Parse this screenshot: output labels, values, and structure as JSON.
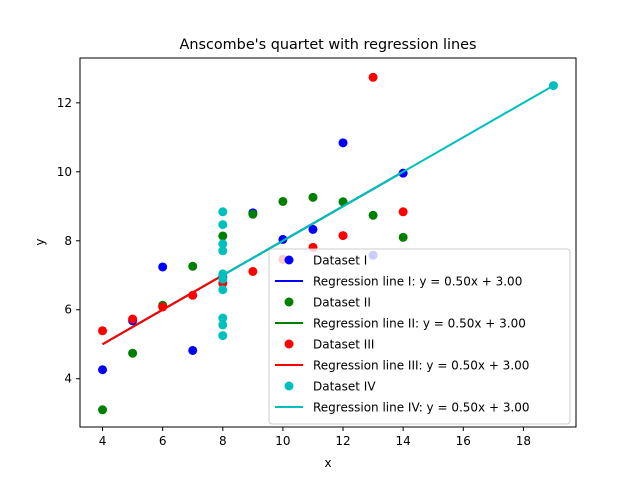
{
  "chart_data": {
    "type": "scatter",
    "title": "Anscombe's quartet with regression lines",
    "xlabel": "x",
    "ylabel": "y",
    "xlim": [
      3.25,
      19.75
    ],
    "ylim": [
      2.6,
      13.3
    ],
    "xticks": [
      4,
      6,
      8,
      10,
      12,
      14,
      16,
      18
    ],
    "yticks": [
      4,
      6,
      8,
      10,
      12
    ],
    "grid": false,
    "legend_position": "lower-right",
    "series": [
      {
        "name": "Dataset I",
        "kind": "scatter",
        "color": "#0000ff",
        "points": [
          [
            10,
            8.04
          ],
          [
            8,
            6.95
          ],
          [
            13,
            7.58
          ],
          [
            9,
            8.81
          ],
          [
            11,
            8.33
          ],
          [
            14,
            9.96
          ],
          [
            6,
            7.24
          ],
          [
            4,
            4.26
          ],
          [
            12,
            10.84
          ],
          [
            7,
            4.82
          ],
          [
            5,
            5.68
          ]
        ]
      },
      {
        "name": "Regression line I: y = 0.50x + 3.00",
        "kind": "line",
        "color": "#0000ff",
        "x": [
          4,
          14
        ],
        "y": [
          5.0,
          10.0
        ]
      },
      {
        "name": "Dataset II",
        "kind": "scatter",
        "color": "#008000",
        "points": [
          [
            10,
            9.14
          ],
          [
            8,
            8.14
          ],
          [
            13,
            8.74
          ],
          [
            9,
            8.77
          ],
          [
            11,
            9.26
          ],
          [
            14,
            8.1
          ],
          [
            6,
            6.13
          ],
          [
            4,
            3.1
          ],
          [
            12,
            9.13
          ],
          [
            7,
            7.26
          ],
          [
            5,
            4.74
          ]
        ]
      },
      {
        "name": "Regression line II: y = 0.50x + 3.00",
        "kind": "line",
        "color": "#008000",
        "x": [
          4,
          14
        ],
        "y": [
          5.0,
          10.0
        ]
      },
      {
        "name": "Dataset III",
        "kind": "scatter",
        "color": "#ff0000",
        "points": [
          [
            10,
            7.46
          ],
          [
            8,
            6.77
          ],
          [
            13,
            12.74
          ],
          [
            9,
            7.11
          ],
          [
            11,
            7.81
          ],
          [
            14,
            8.84
          ],
          [
            6,
            6.08
          ],
          [
            4,
            5.39
          ],
          [
            12,
            8.15
          ],
          [
            7,
            6.42
          ],
          [
            5,
            5.73
          ]
        ]
      },
      {
        "name": "Regression line III: y = 0.50x + 3.00",
        "kind": "line",
        "color": "#ff0000",
        "x": [
          4,
          8
        ],
        "y": [
          5.0,
          7.0
        ]
      },
      {
        "name": "Dataset IV",
        "kind": "scatter",
        "color": "#00bfbf",
        "points": [
          [
            8,
            6.58
          ],
          [
            8,
            5.76
          ],
          [
            8,
            7.71
          ],
          [
            8,
            8.84
          ],
          [
            8,
            8.47
          ],
          [
            8,
            7.04
          ],
          [
            8,
            5.25
          ],
          [
            19,
            12.5
          ],
          [
            8,
            5.56
          ],
          [
            8,
            7.91
          ],
          [
            8,
            6.89
          ]
        ]
      },
      {
        "name": "Regression line IV: y = 0.50x + 3.00",
        "kind": "line",
        "color": "#00bfbf",
        "x": [
          8,
          19
        ],
        "y": [
          7.0,
          12.5
        ]
      }
    ]
  }
}
